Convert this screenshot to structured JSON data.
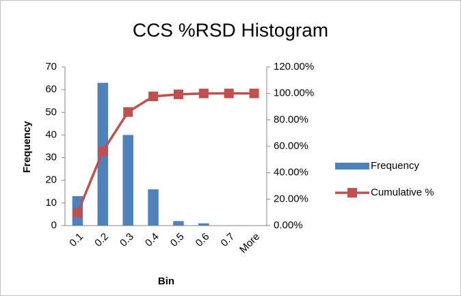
{
  "chart_data": {
    "type": "bar",
    "title": "CCS %RSD Histogram",
    "x_label": "Bin",
    "y_label": "Frequency",
    "categories": [
      "0.1",
      "0.2",
      "0.3",
      "0.4",
      "0.5",
      "0.6",
      "0.7",
      "More"
    ],
    "series": [
      {
        "name": "Frequency",
        "type": "bar",
        "color": "#4f81bd",
        "values": [
          13,
          63,
          40,
          16,
          2,
          1,
          0,
          0
        ]
      },
      {
        "name": "Cumulative %",
        "type": "line",
        "axis": "y2",
        "color": "#c0504d",
        "values": [
          9.63,
          56.3,
          85.93,
          97.78,
          99.26,
          100,
          100,
          100
        ]
      }
    ],
    "ylim": [
      0,
      70
    ],
    "yticks": [
      0,
      10,
      20,
      30,
      40,
      50,
      60,
      70
    ],
    "y2lim": [
      0,
      120
    ],
    "y2ticks": [
      {
        "value": 0,
        "label": "0.00%"
      },
      {
        "value": 20,
        "label": "20.00%"
      },
      {
        "value": 40,
        "label": "40.00%"
      },
      {
        "value": 60,
        "label": "60.00%"
      },
      {
        "value": 80,
        "label": "80.00%"
      },
      {
        "value": 100,
        "label": "100.00%"
      },
      {
        "value": 120,
        "label": "120.00%"
      }
    ],
    "legend": "right"
  }
}
